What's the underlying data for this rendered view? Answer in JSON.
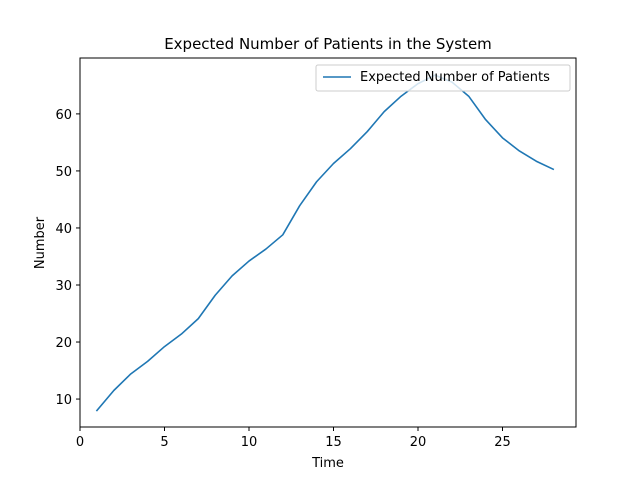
{
  "chart_data": {
    "type": "line",
    "title": "Expected Number of Patients in the System",
    "xlabel": "Time",
    "ylabel": "Number",
    "xlim": [
      0,
      29.35
    ],
    "ylim": [
      5.1,
      69.8
    ],
    "xticks": [
      0,
      5,
      10,
      15,
      20,
      25
    ],
    "yticks": [
      10,
      20,
      30,
      40,
      50,
      60
    ],
    "grid": false,
    "legend_position": "top-right",
    "series": [
      {
        "name": "Expected Number of Patients",
        "color": "#1f77b4",
        "x": [
          1,
          2,
          3,
          4,
          5,
          6,
          7,
          8,
          9,
          10,
          11,
          12,
          13,
          14,
          15,
          16,
          17,
          18,
          19,
          20,
          21,
          22,
          23,
          24,
          25,
          26,
          27,
          28
        ],
        "y": [
          8.0,
          11.5,
          14.4,
          16.6,
          19.2,
          21.4,
          24.1,
          28.2,
          31.6,
          34.2,
          36.3,
          38.8,
          43.9,
          48.1,
          51.3,
          53.9,
          56.9,
          60.4,
          63.1,
          65.3,
          66.8,
          65.6,
          63.1,
          59.0,
          55.8,
          53.5,
          51.7,
          50.3
        ]
      }
    ]
  }
}
